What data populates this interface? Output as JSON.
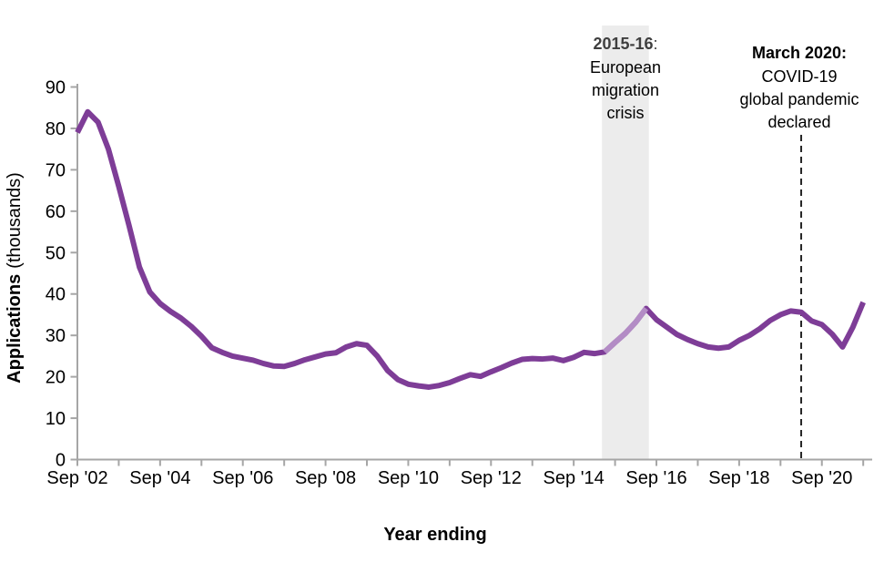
{
  "chart_data": {
    "type": "line",
    "title": "",
    "xlabel": "Year ending",
    "ylabel": {
      "bold": "Applications",
      "rest": "(thousands)"
    },
    "y_axis": {
      "min": 0,
      "max": 90,
      "step": 10,
      "tick_labels": [
        "0",
        "10",
        "20",
        "30",
        "40",
        "50",
        "60",
        "70",
        "80",
        "90"
      ]
    },
    "x_tick_labels": [
      "Sep '02",
      "Sep '04",
      "Sep '06",
      "Sep '08",
      "Sep '10",
      "Sep '12",
      "Sep '14",
      "Sep '16",
      "Sep '18",
      "Sep '20"
    ],
    "frequency": "quarterly",
    "x_range_description": "Year ending Sep 2002 to year ending Sep 2021",
    "quarters": [
      "Sep 2002",
      "Dec 2002",
      "Mar 2003",
      "Jun 2003",
      "Sep 2003",
      "Dec 2003",
      "Mar 2004",
      "Jun 2004",
      "Sep 2004",
      "Dec 2004",
      "Mar 2005",
      "Jun 2005",
      "Sep 2005",
      "Dec 2005",
      "Mar 2006",
      "Jun 2006",
      "Sep 2006",
      "Dec 2006",
      "Mar 2007",
      "Jun 2007",
      "Sep 2007",
      "Dec 2007",
      "Mar 2008",
      "Jun 2008",
      "Sep 2008",
      "Dec 2008",
      "Mar 2009",
      "Jun 2009",
      "Sep 2009",
      "Dec 2009",
      "Mar 2010",
      "Jun 2010",
      "Sep 2010",
      "Dec 2010",
      "Mar 2011",
      "Jun 2011",
      "Sep 2011",
      "Dec 2011",
      "Mar 2012",
      "Jun 2012",
      "Sep 2012",
      "Dec 2012",
      "Mar 2013",
      "Jun 2013",
      "Sep 2013",
      "Dec 2013",
      "Mar 2014",
      "Jun 2014",
      "Sep 2014",
      "Dec 2014",
      "Mar 2015",
      "Jun 2015",
      "Sep 2015",
      "Dec 2015",
      "Mar 2016",
      "Jun 2016",
      "Sep 2016",
      "Dec 2016",
      "Mar 2017",
      "Jun 2017",
      "Sep 2017",
      "Dec 2017",
      "Mar 2018",
      "Jun 2018",
      "Sep 2018",
      "Dec 2018",
      "Mar 2019",
      "Jun 2019",
      "Sep 2019",
      "Dec 2019",
      "Mar 2020",
      "Jun 2020",
      "Sep 2020",
      "Dec 2020",
      "Mar 2021",
      "Jun 2021",
      "Sep 2021"
    ],
    "values": [
      79,
      84,
      81.5,
      75,
      66,
      56.5,
      46.5,
      40.5,
      37.7,
      35.8,
      34.2,
      32.2,
      29.8,
      27,
      25.9,
      25,
      24.5,
      24,
      23.2,
      22.6,
      22.5,
      23.2,
      24.1,
      24.8,
      25.5,
      25.8,
      27.2,
      28,
      27.6,
      25,
      21.5,
      19.3,
      18.2,
      17.8,
      17.5,
      17.9,
      18.6,
      19.6,
      20.5,
      20.1,
      21.2,
      22.2,
      23.3,
      24.2,
      24.4,
      24.3,
      24.5,
      23.9,
      24.7,
      25.9,
      25.6,
      26,
      28.3,
      30.5,
      33.2,
      36.5,
      33.8,
      32,
      30.2,
      29,
      28,
      27.2,
      26.9,
      27.2,
      28.8,
      30,
      31.6,
      33.6,
      35,
      35.9,
      35.6,
      33.5,
      32.6,
      30.3,
      27.2,
      32,
      38
    ],
    "highlight": {
      "start_index": 51,
      "end_index": 55,
      "start_quarter": "Jun 2015",
      "end_quarter": "Jun 2016"
    },
    "event_line": {
      "index": 70,
      "quarter": "Mar 2020",
      "style": "dashed"
    },
    "annotations": {
      "band": {
        "title": "2015-16",
        "colon": ":",
        "lines": [
          "European",
          "migration",
          "crisis"
        ]
      },
      "event": {
        "title": "March 2020:",
        "lines": [
          "COVID-19",
          "global pandemic",
          "declared"
        ]
      }
    },
    "legend": "none",
    "grid": "off",
    "colors": {
      "line": "#7e3d97",
      "line_highlight": "#b38cc5",
      "band": "#ececec",
      "axis": "#a6a6a6",
      "event_line": "#262626",
      "annotation_title": "#3f3f3f",
      "annotation_text": "#595959",
      "axis_text": "#000000"
    }
  }
}
